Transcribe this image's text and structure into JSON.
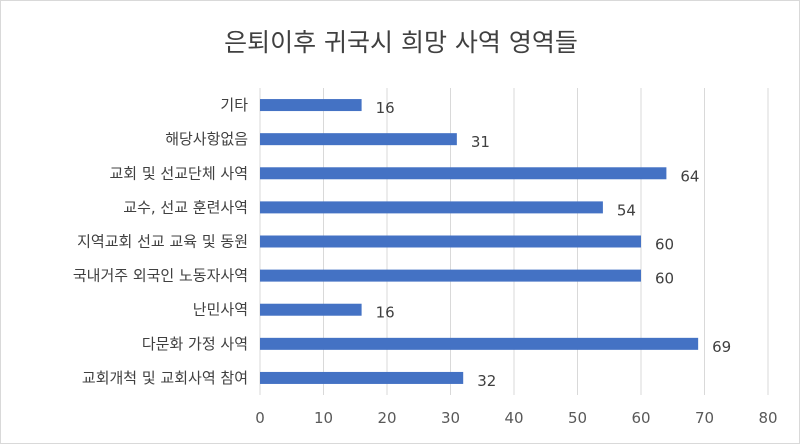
{
  "chart_data": {
    "type": "bar",
    "orientation": "horizontal",
    "title": "은퇴이후 귀국시 희망 사역 영역들",
    "categories": [
      "교회개척 및 교회사역 참여",
      "다문화 가정 사역",
      "난민사역",
      "국내거주 외국인 노동자사역",
      "지역교회 선교 교육 및 동원",
      "교수, 선교 훈련사역",
      "교회 및 선교단체 사역",
      "해당사항없음",
      "기타"
    ],
    "values": [
      32,
      69,
      16,
      60,
      60,
      54,
      64,
      31,
      16
    ],
    "xlim": [
      0,
      80
    ],
    "xticks": [
      0,
      10,
      20,
      30,
      40,
      50,
      60,
      70,
      80
    ],
    "grid": true,
    "legend": "none",
    "bar_color": "#4472c4",
    "data_labels": true
  }
}
